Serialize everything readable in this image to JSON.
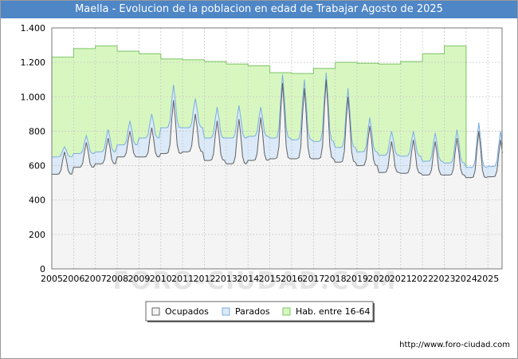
{
  "chart_data": {
    "type": "area",
    "title": "Maella - Evolucion de la poblacion en edad de Trabajar Agosto de 2025",
    "xlabel": "",
    "ylabel": "",
    "ylim": [
      0,
      1400
    ],
    "xlim": [
      2005,
      2025.65
    ],
    "yticks": [
      0,
      200,
      400,
      600,
      800,
      1000,
      1200,
      1400
    ],
    "ytick_labels": [
      "0",
      "200",
      "400",
      "600",
      "800",
      "1.000",
      "1.200",
      "1.400"
    ],
    "xticks": [
      "2005",
      "2006",
      "2007",
      "2008",
      "2009",
      "2010",
      "2011",
      "2012",
      "2013",
      "2014",
      "2015",
      "2016",
      "2017",
      "2018",
      "2019",
      "2020",
      "2021",
      "2022",
      "2023",
      "2024",
      "2025"
    ],
    "hab_16_64": {
      "name": "Hab. entre 16-64",
      "years": [
        2005,
        2006,
        2007,
        2008,
        2009,
        2010,
        2011,
        2012,
        2013,
        2014,
        2015,
        2016,
        2017,
        2018,
        2019,
        2020,
        2021,
        2022,
        2023
      ],
      "values": [
        1230,
        1280,
        1295,
        1265,
        1250,
        1220,
        1215,
        1205,
        1190,
        1180,
        1140,
        1135,
        1165,
        1200,
        1195,
        1190,
        1205,
        1250,
        1295
      ]
    },
    "ocupados_seasonal": {
      "name": "Ocupados",
      "years": [
        2005,
        2006,
        2007,
        2008,
        2009,
        2010,
        2011,
        2012,
        2013,
        2014,
        2015,
        2016,
        2017,
        2018,
        2019,
        2020,
        2021,
        2022,
        2023,
        2024,
        2025
      ],
      "base": [
        550,
        590,
        610,
        650,
        650,
        670,
        680,
        630,
        610,
        630,
        640,
        640,
        640,
        620,
        600,
        560,
        555,
        545,
        545,
        530,
        535
      ],
      "peak": [
        680,
        735,
        760,
        800,
        820,
        980,
        900,
        860,
        870,
        880,
        1080,
        1050,
        1100,
        1000,
        830,
        740,
        750,
        740,
        760,
        800,
        750
      ]
    },
    "parados_seasonal": {
      "name": "Parados",
      "years": [
        2005,
        2006,
        2007,
        2008,
        2009,
        2010,
        2011,
        2012,
        2013,
        2014,
        2015,
        2016,
        2017,
        2018,
        2019,
        2020,
        2021,
        2022,
        2023,
        2024,
        2025
      ],
      "base": [
        100,
        80,
        70,
        70,
        110,
        150,
        140,
        130,
        150,
        140,
        120,
        110,
        100,
        85,
        80,
        100,
        100,
        80,
        70,
        60,
        60
      ],
      "peak": [
        30,
        40,
        50,
        60,
        80,
        90,
        90,
        80,
        80,
        60,
        50,
        50,
        40,
        50,
        50,
        60,
        50,
        50,
        50,
        50,
        50
      ]
    },
    "legend": [
      "Ocupados",
      "Parados",
      "Hab. entre 16-64"
    ],
    "colors": {
      "ocupados_fill": "#f4f4f4",
      "parados_fill": "#dbe9f8",
      "hab_fill": "#d8f7c0",
      "ocupados_line": "#606060",
      "parados_line": "#7aaee0",
      "hab_line": "#7cc467",
      "title_bg": "#4e86c6"
    }
  },
  "watermark": "FORO-CIUDAD.COM",
  "source_url": "http://www.foro-ciudad.com"
}
